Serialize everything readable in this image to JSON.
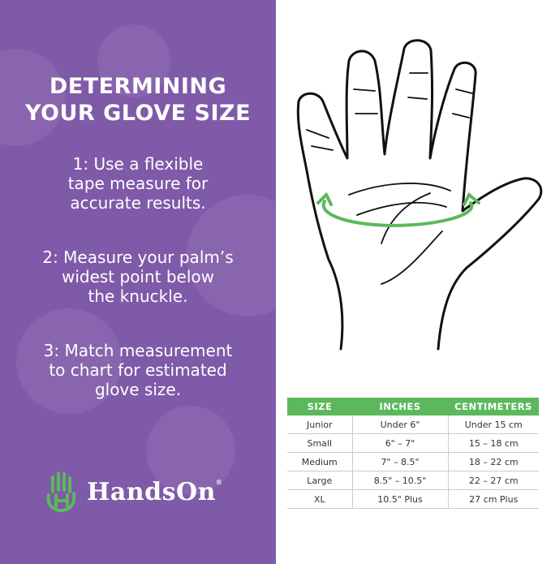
{
  "title": [
    "DETERMINING",
    "YOUR GLOVE SIZE"
  ],
  "steps": [
    [
      "1: Use a flexible",
      "tape measure for",
      "accurate results."
    ],
    [
      "2: Measure your palm’s",
      "widest point below",
      "the knuckle."
    ],
    [
      "3: Match measurement",
      "to chart for estimated",
      "glove size."
    ]
  ],
  "brand": {
    "name": "HandsOn",
    "registered": "®"
  },
  "colors": {
    "panel": "#7f5aa8",
    "accent": "#5cb85c"
  },
  "table": {
    "headers": [
      "SIZE",
      "INCHES",
      "CENTIMETERS"
    ],
    "rows": [
      [
        "Junior",
        "Under 6\"",
        "Under 15 cm"
      ],
      [
        "Small",
        "6\" – 7\"",
        "15 – 18 cm"
      ],
      [
        "Medium",
        "7\" – 8.5\"",
        "18 – 22 cm"
      ],
      [
        "Large",
        "8.5\" – 10.5\"",
        "22 – 27 cm"
      ],
      [
        "XL",
        "10.5\" Plus",
        "27 cm Plus"
      ]
    ]
  }
}
